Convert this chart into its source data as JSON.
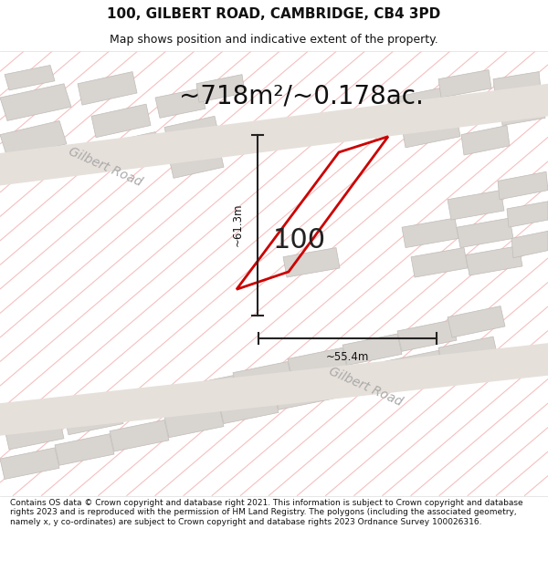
{
  "title_line1": "100, GILBERT ROAD, CAMBRIDGE, CB4 3PD",
  "title_line2": "Map shows position and indicative extent of the property.",
  "area_text": "~718m²/~0.178ac.",
  "property_number": "100",
  "dim_vertical": "~61.3m",
  "dim_horizontal": "~55.4m",
  "road_label_upper": "Gilbert Road",
  "road_label_lower": "Gilbert Road",
  "footer_text": "Contains OS data © Crown copyright and database right 2021. This information is subject to Crown copyright and database rights 2023 and is reproduced with the permission of HM Land Registry. The polygons (including the associated geometry, namely x, y co-ordinates) are subject to Crown copyright and database rights 2023 Ordnance Survey 100026316.",
  "bg_color": "#ffffff",
  "map_bg": "#ffffff",
  "hatch_color": "#f5c0c0",
  "property_outline_color": "#cc0000",
  "dim_line_color": "#222222",
  "block_color": "#d8d4d0",
  "block_edge": "#c0bcb8",
  "road_fill": "#e8e4e0",
  "footer_bg": "#ffffff",
  "title_fontsize": 11,
  "subtitle_fontsize": 9,
  "area_fontsize": 20,
  "number_fontsize": 22,
  "road_label_fontsize": 10,
  "dim_fontsize": 8.5,
  "footer_fontsize": 6.5
}
